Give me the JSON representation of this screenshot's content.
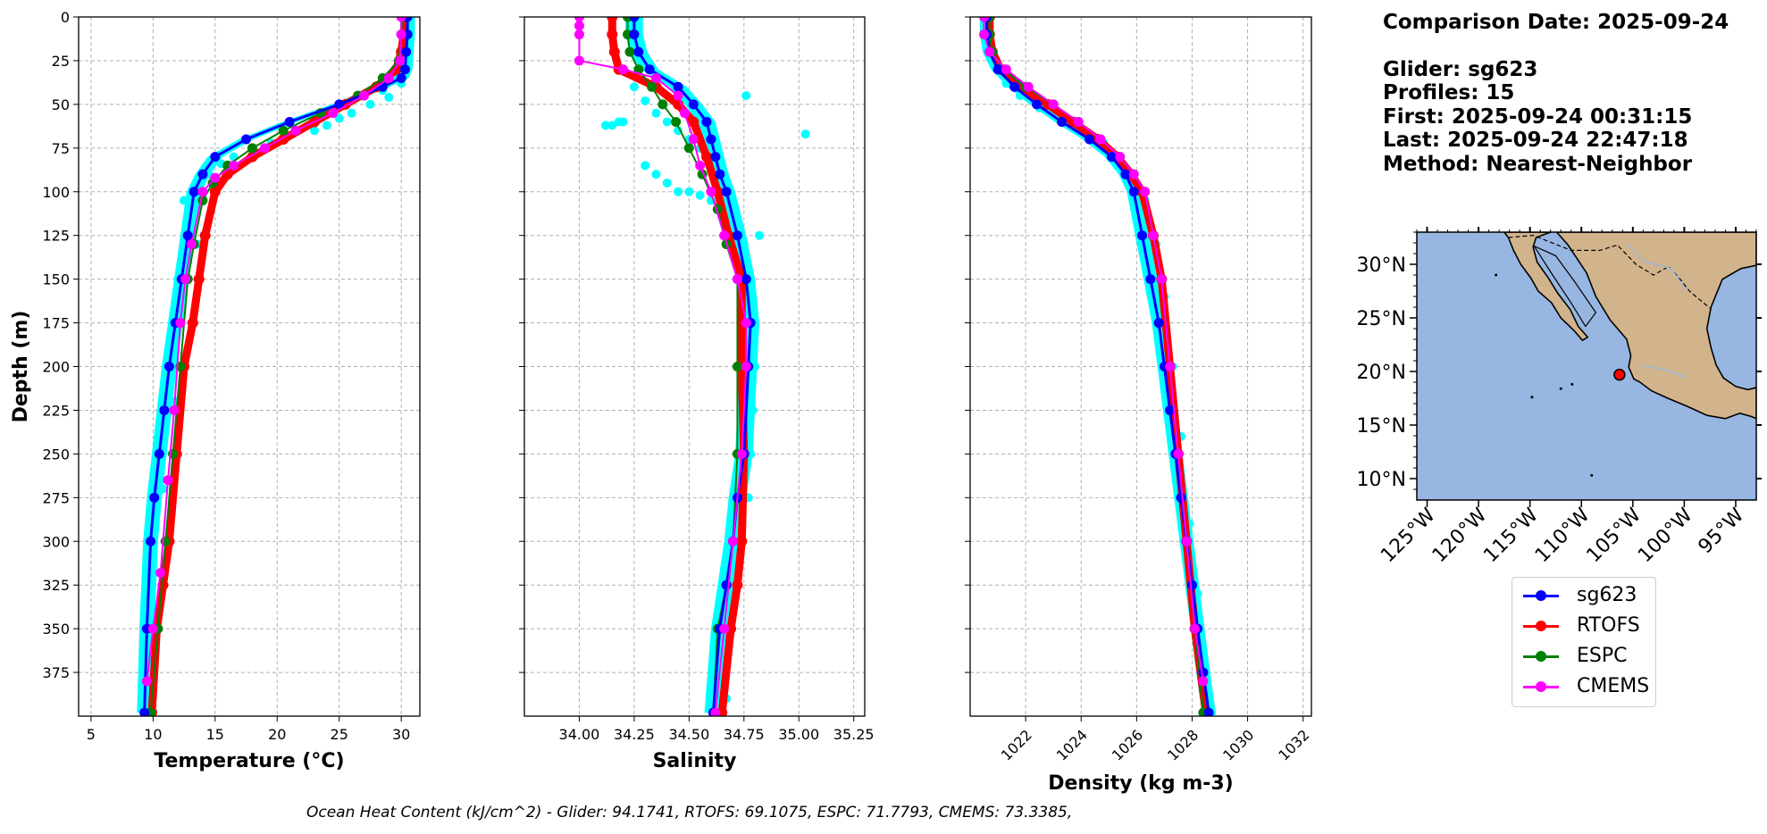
{
  "info": {
    "comparison_date": "Comparison Date: 2025-09-24",
    "glider": "Glider: sg623",
    "profiles": "Profiles: 15",
    "first": "First: 2025-09-24 00:31:15",
    "last": "Last: 2025-09-24 22:47:18",
    "method": "Method: Nearest-Neighbor"
  },
  "footer": "Ocean Heat Content (kJ/cm^2) - Glider: 94.1741,  RTOFS: 69.1075,  ESPC: 71.7793,  CMEMS: 73.3385,",
  "colors": {
    "sg623": "#0000ff",
    "RTOFS": "#ff0000",
    "ESPC": "#008000",
    "CMEMS": "#ff00ff",
    "scatter": "#00ffff",
    "land": "#d2b48c",
    "ocean": "#97b6e1",
    "grid": "#b0b0b0"
  },
  "legend": [
    {
      "name": "sg623",
      "color": "#0000ff"
    },
    {
      "name": "RTOFS",
      "color": "#ff0000"
    },
    {
      "name": "ESPC",
      "color": "#008000"
    },
    {
      "name": "CMEMS",
      "color": "#ff00ff"
    }
  ],
  "chart_data": [
    {
      "type": "line",
      "id": "temperature",
      "xlabel": "Temperature (°C)",
      "ylabel": "Depth (m)",
      "xlim": [
        4,
        31.5
      ],
      "ylim": [
        400,
        0
      ],
      "xticks": [
        5,
        10,
        15,
        20,
        25,
        30
      ],
      "yticks": [
        0,
        25,
        50,
        75,
        100,
        125,
        150,
        175,
        200,
        225,
        250,
        275,
        300,
        325,
        350,
        375
      ],
      "grid": true,
      "scatter": {
        "name": "glider profiles",
        "color": "#00ffff",
        "x": [
          30.3,
          30.1,
          30.6,
          30.4,
          30.2,
          30.0,
          28.5,
          29.0,
          27.5,
          26.0,
          25.0,
          24.0,
          23.0,
          21.0,
          19.5,
          18.0,
          16.5,
          15.5,
          14.5,
          13.5,
          12.5,
          13.0,
          14.0,
          15.0,
          12.0,
          11.5,
          11.0,
          10.5,
          10.0,
          9.5,
          10.8,
          12.8,
          13.6,
          11.8,
          10.3
        ],
        "y": [
          2,
          10,
          20,
          28,
          34,
          38,
          42,
          46,
          50,
          55,
          58,
          62,
          65,
          68,
          72,
          76,
          80,
          84,
          90,
          95,
          105,
          110,
          100,
          92,
          150,
          180,
          210,
          250,
          300,
          380,
          270,
          140,
          130,
          220,
          340
        ]
      },
      "series": [
        {
          "name": "sg623",
          "color": "#0000ff",
          "x": [
            30.5,
            30.5,
            30.4,
            30.3,
            30.0,
            28.5,
            25.0,
            21.0,
            17.5,
            15.0,
            14.0,
            13.3,
            12.8,
            12.3,
            11.8,
            11.3,
            10.9,
            10.5,
            10.1,
            9.8,
            9.5,
            9.3
          ],
          "y": [
            0,
            10,
            20,
            30,
            35,
            40,
            50,
            60,
            70,
            80,
            90,
            100,
            125,
            150,
            175,
            200,
            225,
            250,
            275,
            300,
            350,
            398
          ]
        },
        {
          "name": "RTOFS",
          "color": "#ff0000",
          "x": [
            30.3,
            30.2,
            30.0,
            29.6,
            28.0,
            25.5,
            23.0,
            20.5,
            18.0,
            16.0,
            15.0,
            14.2,
            13.7,
            13.2,
            12.5,
            11.9,
            11.3,
            10.8,
            10.3,
            9.9
          ],
          "y": [
            0,
            10,
            20,
            30,
            40,
            50,
            60,
            70,
            80,
            90,
            100,
            125,
            150,
            175,
            200,
            250,
            300,
            325,
            350,
            398
          ]
        },
        {
          "name": "ESPC",
          "color": "#008000",
          "x": [
            30.1,
            30.0,
            29.8,
            28.5,
            26.5,
            23.5,
            20.5,
            18.0,
            16.0,
            14.8,
            14.0,
            13.3,
            12.8,
            12.2,
            11.6,
            11.0,
            10.4,
            9.8
          ],
          "y": [
            0,
            10,
            25,
            35,
            45,
            55,
            65,
            75,
            85,
            95,
            105,
            130,
            150,
            200,
            250,
            300,
            350,
            398
          ]
        },
        {
          "name": "CMEMS",
          "color": "#ff00ff",
          "x": [
            30.0,
            30.0,
            29.9,
            29.0,
            27.0,
            24.5,
            21.5,
            19.0,
            16.5,
            15.0,
            14.0,
            13.1,
            12.6,
            12.2,
            11.7,
            11.2,
            10.6,
            10.0,
            9.5
          ],
          "y": [
            0,
            10,
            25,
            35,
            45,
            55,
            65,
            75,
            85,
            92,
            100,
            130,
            150,
            175,
            225,
            265,
            318,
            350,
            380
          ]
        }
      ]
    },
    {
      "type": "line",
      "id": "salinity",
      "xlabel": "Salinity",
      "xlim": [
        33.75,
        35.3
      ],
      "ylim": [
        400,
        0
      ],
      "xticks": [
        34.0,
        34.25,
        34.5,
        34.75,
        35.0,
        35.25
      ],
      "grid": true,
      "scatter": {
        "name": "glider profiles",
        "color": "#00ffff",
        "x": [
          34.25,
          34.3,
          34.35,
          34.4,
          34.45,
          34.5,
          34.55,
          34.6,
          34.2,
          34.15,
          34.3,
          34.35,
          34.4,
          34.45,
          34.5,
          34.55,
          34.6,
          34.65,
          34.7,
          34.75,
          34.78,
          34.8,
          34.8,
          34.79,
          34.78,
          34.77,
          34.74,
          34.7,
          34.66,
          34.62,
          34.63,
          34.67,
          35.03,
          34.12,
          34.18,
          34.82,
          34.76
        ],
        "y": [
          40,
          48,
          55,
          60,
          65,
          70,
          75,
          80,
          60,
          62,
          85,
          90,
          95,
          100,
          100,
          102,
          105,
          110,
          120,
          130,
          150,
          175,
          200,
          225,
          250,
          275,
          300,
          325,
          350,
          380,
          398,
          390,
          67,
          62,
          60,
          125,
          45
        ]
      },
      "series": [
        {
          "name": "sg623",
          "color": "#0000ff",
          "x": [
            34.25,
            34.25,
            34.27,
            34.32,
            34.45,
            34.52,
            34.58,
            34.6,
            34.62,
            34.64,
            34.67,
            34.72,
            34.76,
            34.78,
            34.77,
            34.75,
            34.72,
            34.7,
            34.67,
            34.64,
            34.61
          ],
          "y": [
            0,
            10,
            20,
            30,
            40,
            50,
            60,
            70,
            80,
            90,
            100,
            125,
            150,
            175,
            200,
            250,
            275,
            300,
            325,
            350,
            398
          ]
        },
        {
          "name": "RTOFS",
          "color": "#ff0000",
          "x": [
            34.15,
            34.15,
            34.16,
            34.18,
            34.35,
            34.45,
            34.52,
            34.58,
            34.63,
            34.68,
            34.74,
            34.74,
            34.74,
            34.75,
            34.74,
            34.72,
            34.69,
            34.65
          ],
          "y": [
            0,
            10,
            20,
            30,
            40,
            50,
            60,
            80,
            100,
            125,
            150,
            175,
            200,
            250,
            300,
            325,
            350,
            398
          ]
        },
        {
          "name": "ESPC",
          "color": "#008000",
          "x": [
            34.22,
            34.22,
            34.23,
            34.27,
            34.33,
            34.38,
            34.44,
            34.5,
            34.56,
            34.63,
            34.67,
            34.72,
            34.72,
            34.72,
            34.7,
            34.67,
            34.63,
            34.61
          ],
          "y": [
            0,
            10,
            20,
            30,
            40,
            50,
            60,
            75,
            90,
            110,
            130,
            150,
            200,
            250,
            300,
            325,
            350,
            398
          ]
        },
        {
          "name": "CMEMS",
          "color": "#ff00ff",
          "x": [
            34.0,
            34.0,
            34.0,
            34.0,
            34.2,
            34.35,
            34.45,
            34.48,
            34.52,
            34.55,
            34.6,
            34.66,
            34.72,
            34.76,
            34.76,
            34.74,
            34.7,
            34.66,
            34.62
          ],
          "y": [
            0,
            5,
            10,
            25,
            30,
            35,
            45,
            55,
            70,
            85,
            100,
            125,
            150,
            175,
            200,
            250,
            300,
            350,
            398
          ]
        }
      ]
    },
    {
      "type": "line",
      "id": "density",
      "xlabel": "Density (kg m-3)",
      "xlim": [
        1020.0,
        1032.3
      ],
      "ylim": [
        400,
        0
      ],
      "xticks": [
        1022,
        1024,
        1026,
        1028,
        1030,
        1032
      ],
      "grid": true,
      "scatter": {
        "name": "glider profiles",
        "color": "#00ffff",
        "x": [
          1020.7,
          1020.8,
          1021.0,
          1021.3,
          1021.8,
          1022.5,
          1023.2,
          1024.0,
          1024.8,
          1025.4,
          1025.9,
          1026.3,
          1026.7,
          1027.0,
          1027.3,
          1027.6,
          1027.9,
          1028.2,
          1028.5,
          1028.7
        ],
        "y": [
          5,
          20,
          30,
          38,
          45,
          52,
          58,
          65,
          72,
          80,
          92,
          105,
          130,
          160,
          200,
          240,
          290,
          330,
          375,
          398
        ]
      },
      "series": [
        {
          "name": "sg623",
          "color": "#0000ff",
          "x": [
            1020.6,
            1020.6,
            1020.7,
            1021.0,
            1021.6,
            1022.4,
            1023.3,
            1024.3,
            1025.1,
            1025.6,
            1025.9,
            1026.2,
            1026.5,
            1026.8,
            1027.0,
            1027.2,
            1027.4,
            1027.6,
            1027.8,
            1028.0,
            1028.2,
            1028.4,
            1028.6
          ],
          "y": [
            0,
            10,
            20,
            30,
            40,
            50,
            60,
            70,
            80,
            90,
            100,
            125,
            150,
            175,
            200,
            225,
            250,
            275,
            300,
            325,
            350,
            375,
            398
          ]
        },
        {
          "name": "RTOFS",
          "color": "#ff0000",
          "x": [
            1020.7,
            1020.7,
            1020.8,
            1021.1,
            1021.8,
            1022.8,
            1023.7,
            1024.6,
            1025.3,
            1025.8,
            1026.2,
            1026.6,
            1026.9,
            1027.2,
            1027.5,
            1027.8,
            1028.1,
            1028.5
          ],
          "y": [
            0,
            10,
            20,
            30,
            40,
            50,
            60,
            70,
            80,
            90,
            100,
            125,
            150,
            200,
            250,
            300,
            350,
            398
          ]
        },
        {
          "name": "ESPC",
          "color": "#008000",
          "x": [
            1020.7,
            1020.7,
            1020.8,
            1021.2,
            1022.0,
            1023.0,
            1023.9,
            1024.7,
            1025.4,
            1025.9,
            1026.3,
            1026.6,
            1026.9,
            1027.2,
            1027.5,
            1027.8,
            1028.1,
            1028.4
          ],
          "y": [
            0,
            10,
            20,
            30,
            40,
            50,
            60,
            70,
            80,
            90,
            100,
            125,
            150,
            200,
            250,
            300,
            350,
            398
          ]
        },
        {
          "name": "CMEMS",
          "color": "#ff00ff",
          "x": [
            1020.5,
            1020.5,
            1020.7,
            1021.3,
            1022.1,
            1023.0,
            1023.9,
            1024.7,
            1025.4,
            1025.9,
            1026.3,
            1026.6,
            1026.9,
            1027.2,
            1027.5,
            1027.8,
            1028.1,
            1028.4
          ],
          "y": [
            0,
            10,
            20,
            30,
            40,
            50,
            60,
            70,
            80,
            90,
            100,
            125,
            150,
            200,
            250,
            300,
            350,
            380
          ]
        }
      ]
    },
    {
      "type": "map",
      "id": "location-map",
      "lon_range": [
        -126,
        -93
      ],
      "lat_range": [
        8,
        33
      ],
      "xticks": [
        "125°W",
        "120°W",
        "115°W",
        "110°W",
        "105°W",
        "100°W",
        "95°W"
      ],
      "xtick_values": [
        -125,
        -120,
        -115,
        -110,
        -105,
        -100,
        -95
      ],
      "yticks": [
        "30°N",
        "25°N",
        "20°N",
        "15°N",
        "10°N"
      ],
      "ytick_values": [
        30,
        25,
        20,
        15,
        10
      ],
      "glider_position": {
        "lon": -106.3,
        "lat": 19.7,
        "color": "#ff0000"
      },
      "land_outline": [
        [
          -112.4,
          33
        ],
        [
          -111.3,
          31.8
        ],
        [
          -109.5,
          29.2
        ],
        [
          -108.6,
          27.0
        ],
        [
          -107.2,
          24.8
        ],
        [
          -105.6,
          23.0
        ],
        [
          -105.2,
          21.5
        ],
        [
          -105.4,
          20.4
        ],
        [
          -104.9,
          19.3
        ],
        [
          -104.3,
          19.0
        ],
        [
          -103.2,
          18.2
        ],
        [
          -101.6,
          17.5
        ],
        [
          -99.6,
          16.7
        ],
        [
          -97.8,
          15.9
        ],
        [
          -96.0,
          15.6
        ],
        [
          -94.6,
          16.1
        ],
        [
          -93.5,
          15.8
        ],
        [
          -93,
          15.6
        ],
        [
          -93,
          18.5
        ],
        [
          -93.8,
          18.3
        ],
        [
          -95.0,
          18.6
        ],
        [
          -96.2,
          19.4
        ],
        [
          -96.9,
          20.6
        ],
        [
          -97.4,
          22.2
        ],
        [
          -97.8,
          24.0
        ],
        [
          -97.4,
          26.0
        ],
        [
          -96.3,
          28.6
        ],
        [
          -94.5,
          29.6
        ],
        [
          -93,
          29.9
        ],
        [
          -93,
          33
        ]
      ],
      "baja_outline": [
        [
          -117.1,
          32.5
        ],
        [
          -116.6,
          31.3
        ],
        [
          -115.9,
          30.0
        ],
        [
          -114.9,
          28.7
        ],
        [
          -114.2,
          27.5
        ],
        [
          -112.9,
          26.4
        ],
        [
          -112.0,
          25.0
        ],
        [
          -110.7,
          23.8
        ],
        [
          -109.9,
          22.9
        ],
        [
          -109.4,
          23.2
        ],
        [
          -110.3,
          24.2
        ],
        [
          -111.1,
          25.8
        ],
        [
          -112.3,
          27.3
        ],
        [
          -113.2,
          28.7
        ],
        [
          -114.3,
          30.2
        ],
        [
          -114.7,
          31.6
        ],
        [
          -114.4,
          32.5
        ],
        [
          -113.0,
          33
        ],
        [
          -117.5,
          33
        ]
      ],
      "border_outline": [
        [
          -117.1,
          32.5
        ],
        [
          -114.7,
          32.7
        ],
        [
          -111.0,
          31.3
        ],
        [
          -108.2,
          31.3
        ],
        [
          -106.5,
          31.8
        ],
        [
          -104.7,
          30.0
        ],
        [
          -103.0,
          29.0
        ],
        [
          -101.5,
          29.8
        ],
        [
          -100.3,
          28.5
        ],
        [
          -99.5,
          27.5
        ],
        [
          -97.5,
          25.9
        ]
      ]
    }
  ]
}
